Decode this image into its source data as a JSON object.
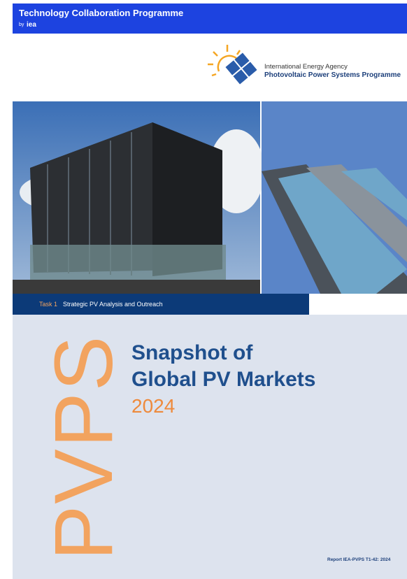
{
  "header": {
    "title": "Technology Collaboration Programme",
    "by": "by",
    "org": "iea"
  },
  "logo": {
    "line1": "International Energy Agency",
    "line2": "Photovoltaic Power Systems Programme"
  },
  "task": {
    "label": "Task 1",
    "name": "Strategic PV Analysis and Outreach"
  },
  "cover": {
    "acronym": "PVPS",
    "title_line1": "Snapshot of",
    "title_line2": "Global PV Markets",
    "year": "2024"
  },
  "footer": {
    "report": "Report IEA-PVPS T1-42: 2024"
  }
}
